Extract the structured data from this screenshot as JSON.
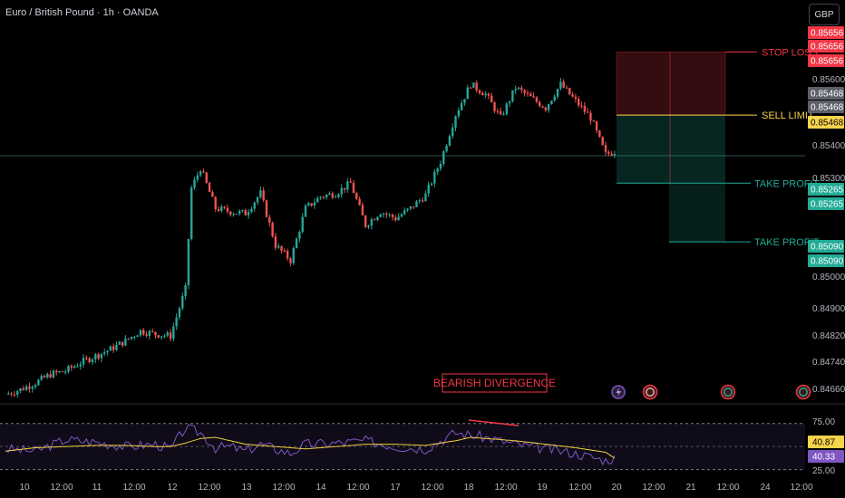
{
  "header": {
    "title": "Euro / British Pound · 1h · OANDA"
  },
  "currency_button": "GBP",
  "colors": {
    "up": "#26a69a",
    "down": "#ef5350",
    "rsi": "#7e57c2",
    "rsi_ma": "#f4d03f",
    "stop": "#f23645",
    "target": "#22ab94",
    "entry": "#f7d44c"
  },
  "chart_data": {
    "type": "candlestick",
    "symbol": "EURGBP",
    "interval": "1h",
    "ylim": [
      0.8461,
      0.8573
    ],
    "price_ticks": [
      "0.85600",
      "0.85400",
      "0.85300",
      "0.85000",
      "0.84900",
      "0.84820",
      "0.84740",
      "0.84660"
    ],
    "x_ticks": [
      "10",
      "12:00",
      "11",
      "12:00",
      "12",
      "12:00",
      "13",
      "12:00",
      "14",
      "12:00",
      "17",
      "12:00",
      "18",
      "12:00",
      "19",
      "12:00",
      "20",
      "12:00",
      "21",
      "12:00",
      "24",
      "12:00"
    ],
    "price_path": {
      "x": [
        0,
        5,
        10,
        15,
        20,
        25,
        30,
        35,
        40,
        45,
        50,
        55,
        60,
        62,
        65,
        70,
        75,
        80,
        85,
        90,
        95,
        100,
        105,
        110,
        115,
        120,
        125,
        130,
        135,
        140,
        145,
        150,
        155,
        160,
        165,
        170,
        175,
        180,
        185,
        190,
        195,
        200,
        203
      ],
      "close": [
        0.84635,
        0.8465,
        0.8467,
        0.84695,
        0.84705,
        0.8473,
        0.8475,
        0.8477,
        0.84795,
        0.84825,
        0.84815,
        0.8481,
        0.8495,
        0.8525,
        0.8531,
        0.8519,
        0.8518,
        0.85175,
        0.85235,
        0.8508,
        0.85035,
        0.8519,
        0.85225,
        0.85235,
        0.85265,
        0.8514,
        0.8518,
        0.8516,
        0.8519,
        0.8523,
        0.8533,
        0.8547,
        0.8556,
        0.8553,
        0.8546,
        0.8555,
        0.8552,
        0.8549,
        0.8556,
        0.8551,
        0.8546,
        0.8535,
        0.8536
      ]
    },
    "position": {
      "stop_loss": {
        "label": "STOP LOSS",
        "price": 0.85656
      },
      "sell_limit": {
        "label": "SELL LIMIT",
        "price": 0.85468
      },
      "take_profit_1": {
        "label": "TAKE PROFIT",
        "price": 0.85265
      },
      "take_profit_2": {
        "label": "TAKE PROFIT",
        "price": 0.8509
      }
    },
    "price_badges": [
      "0.85656",
      "0.85656",
      "0.85656",
      "0.85468",
      "0.85468",
      "0.85468",
      "0.85265",
      "0.85265",
      "0.85090",
      "0.85090"
    ],
    "annotation": "BEARISH DIVERGENCE",
    "rsi": {
      "ylim": [
        25,
        80
      ],
      "ticks": [
        "75.00",
        "25.00"
      ],
      "bands": [
        70,
        30
      ],
      "rsi_value": "40.33",
      "ma_value": "40.87",
      "x": [
        0,
        10,
        20,
        30,
        40,
        50,
        55,
        60,
        65,
        70,
        75,
        80,
        85,
        90,
        95,
        100,
        110,
        120,
        130,
        140,
        150,
        155,
        160,
        170,
        180,
        190,
        200,
        203
      ],
      "rsi": [
        48,
        46,
        56,
        54,
        50,
        52,
        48,
        66,
        62,
        49,
        50,
        46,
        52,
        48,
        44,
        52,
        53,
        55,
        50,
        48,
        62,
        60,
        58,
        52,
        48,
        44,
        38,
        40
      ],
      "ma": [
        46,
        49,
        50,
        51,
        51,
        50,
        50,
        53,
        57,
        58,
        55,
        52,
        51,
        50,
        49,
        48,
        50,
        52,
        52,
        51,
        55,
        58,
        57,
        55,
        52,
        49,
        45,
        40
      ]
    },
    "grid": false
  }
}
